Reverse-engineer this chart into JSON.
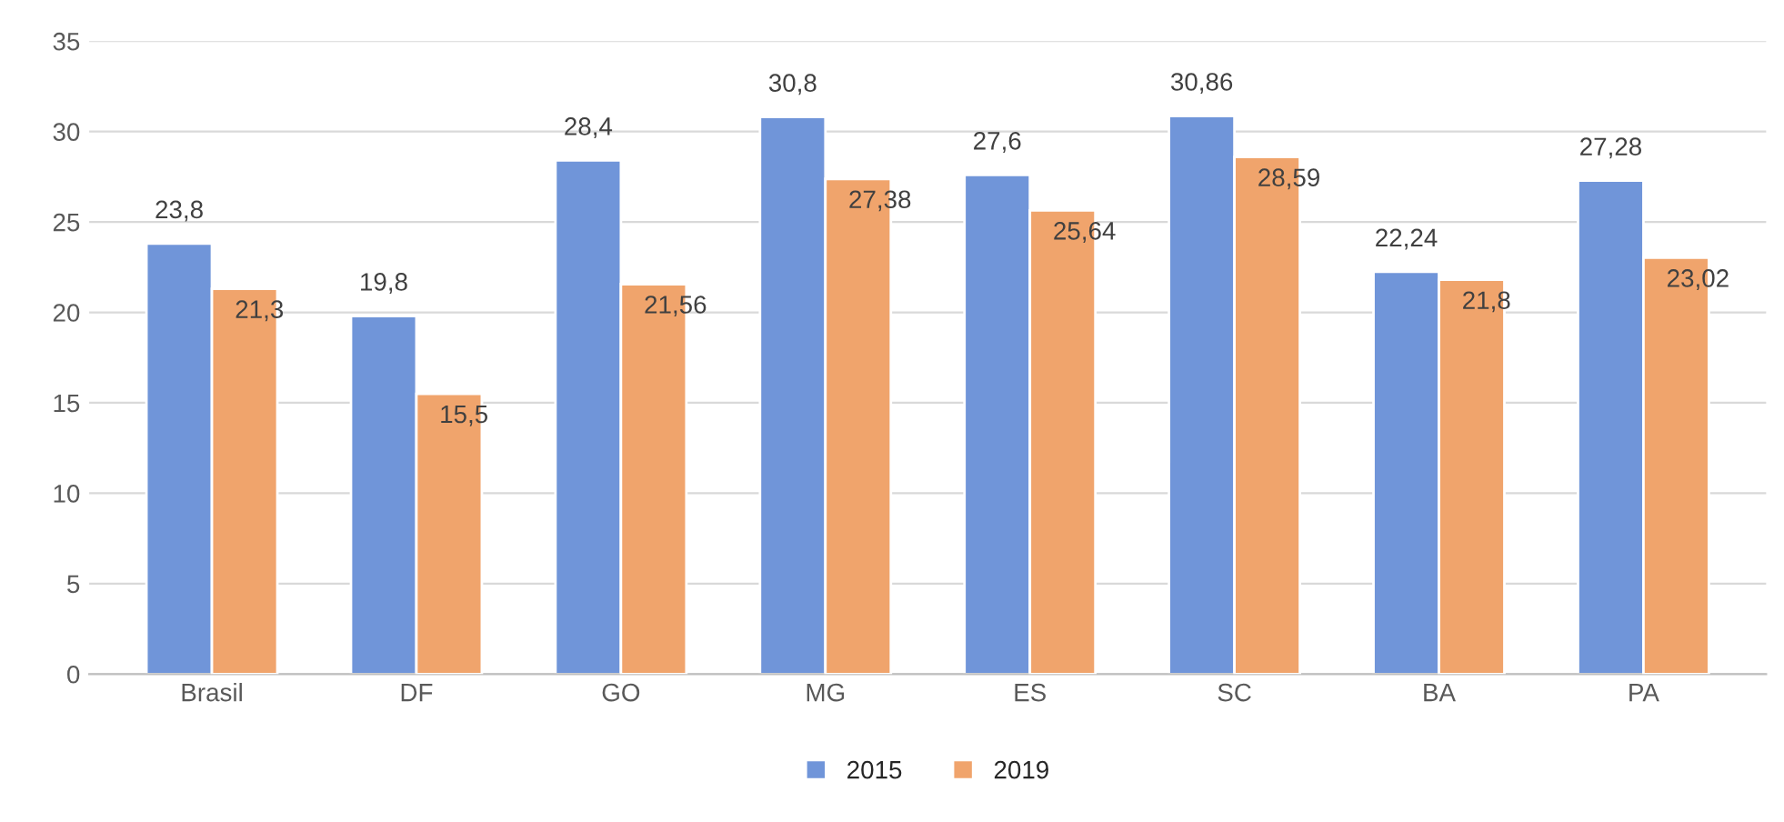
{
  "chart_data": {
    "type": "bar",
    "categories": [
      "Brasil",
      "DF",
      "GO",
      "MG",
      "ES",
      "SC",
      "BA",
      "PA"
    ],
    "series": [
      {
        "name": "2015",
        "color": "#7095d9",
        "values": [
          23.8,
          19.8,
          28.4,
          30.8,
          27.6,
          30.86,
          22.24,
          27.28
        ],
        "value_labels": [
          "23,8",
          "19,8",
          "28,4",
          "30,8",
          "27,6",
          "30,86",
          "22,24",
          "27,28"
        ]
      },
      {
        "name": "2019",
        "color": "#f0a46c",
        "values": [
          21.3,
          15.5,
          21.56,
          27.38,
          25.64,
          28.59,
          21.8,
          23.02
        ],
        "value_labels": [
          "21,3",
          "15,5",
          "21,56",
          "27,38",
          "25,64",
          "28,59",
          "21,8",
          "23,02"
        ]
      }
    ],
    "ylim": [
      0,
      35
    ],
    "yticks": [
      0,
      5,
      10,
      15,
      20,
      25,
      30,
      35
    ],
    "grid": "y",
    "legend": "bottom"
  }
}
